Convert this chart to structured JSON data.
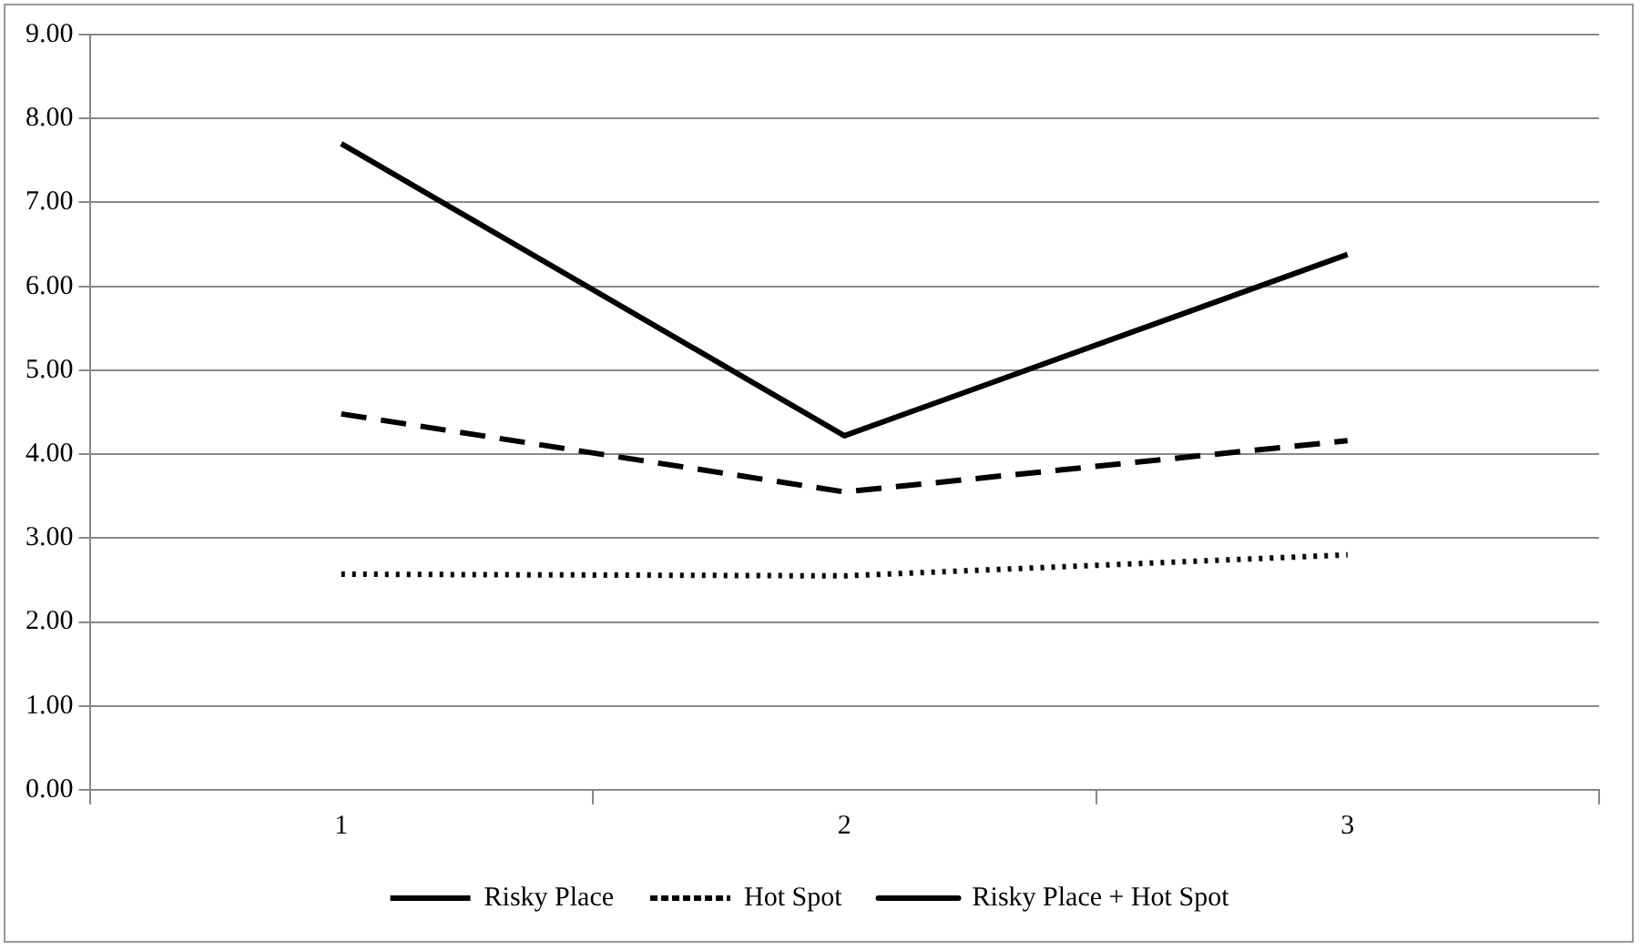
{
  "chart_data": {
    "type": "line",
    "categories": [
      "1",
      "2",
      "3"
    ],
    "series": [
      {
        "name": "Risky Place",
        "color": "#000000",
        "line_style": "dashed",
        "values": [
          4.48,
          3.55,
          4.16
        ]
      },
      {
        "name": "Hot Spot",
        "color": "#000000",
        "line_style": "dotted",
        "values": [
          2.57,
          2.55,
          2.8
        ]
      },
      {
        "name": "Risky Place + Hot Spot",
        "color": "#000000",
        "line_style": "solid",
        "values": [
          7.7,
          4.22,
          6.38
        ]
      }
    ],
    "ylim": [
      0,
      9
    ],
    "yticks": [
      {
        "value": 0,
        "label": "0.00"
      },
      {
        "value": 1,
        "label": "1.00"
      },
      {
        "value": 2,
        "label": "2.00"
      },
      {
        "value": 3,
        "label": "3.00"
      },
      {
        "value": 4,
        "label": "4.00"
      },
      {
        "value": 5,
        "label": "5.00"
      },
      {
        "value": 6,
        "label": "6.00"
      },
      {
        "value": 7,
        "label": "7.00"
      },
      {
        "value": 8,
        "label": "8.00"
      },
      {
        "value": 9,
        "label": "9.00"
      }
    ],
    "grid": "y",
    "legend": "bottom",
    "marker": "none"
  }
}
